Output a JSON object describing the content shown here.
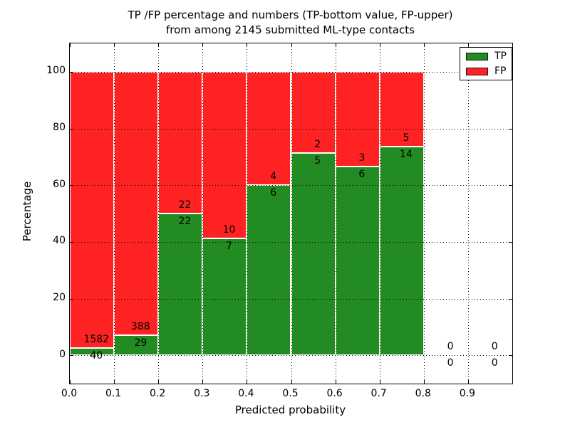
{
  "title": {
    "line1": "TP /FP percentage and numbers (TP-bottom value, FP-upper)",
    "line2": "from among 2145 submitted ML-type contacts"
  },
  "legend": {
    "items": [
      {
        "label": "TP",
        "color": "#228b22"
      },
      {
        "label": "FP",
        "color": "#fe2222"
      }
    ]
  },
  "chart_data": {
    "type": "bar",
    "subtype": "stacked-100pct",
    "title": "TP /FP percentage and numbers (TP-bottom value, FP-upper)\nfrom among 2145 submitted ML-type contacts",
    "xlabel": "Predicted probability",
    "ylabel": "Percentage",
    "xlim": [
      0.0,
      1.0
    ],
    "ylim": [
      -10,
      110
    ],
    "x_ticks": [
      "0.0",
      "0.1",
      "0.2",
      "0.3",
      "0.4",
      "0.5",
      "0.6",
      "0.7",
      "0.8",
      "0.9"
    ],
    "y_ticks": [
      "0",
      "20",
      "40",
      "60",
      "80",
      "100"
    ],
    "grid": "dotted black, drawn above bars",
    "legend_position": "upper right",
    "total_contacts": 2145,
    "series": [
      {
        "name": "TP",
        "color": "#228b22",
        "position": "bottom"
      },
      {
        "name": "FP",
        "color": "#fe2222",
        "position": "top"
      }
    ],
    "bins": [
      {
        "x_start": 0.0,
        "x_end": 0.1,
        "tp": 40,
        "fp": 1582,
        "tp_pct": 2.47
      },
      {
        "x_start": 0.1,
        "x_end": 0.2,
        "tp": 29,
        "fp": 388,
        "tp_pct": 6.95
      },
      {
        "x_start": 0.2,
        "x_end": 0.3,
        "tp": 22,
        "fp": 22,
        "tp_pct": 50.0
      },
      {
        "x_start": 0.3,
        "x_end": 0.4,
        "tp": 7,
        "fp": 10,
        "tp_pct": 41.18
      },
      {
        "x_start": 0.4,
        "x_end": 0.5,
        "tp": 6,
        "fp": 4,
        "tp_pct": 60.0
      },
      {
        "x_start": 0.5,
        "x_end": 0.6,
        "tp": 5,
        "fp": 2,
        "tp_pct": 71.43
      },
      {
        "x_start": 0.6,
        "x_end": 0.7,
        "tp": 6,
        "fp": 3,
        "tp_pct": 66.67
      },
      {
        "x_start": 0.7,
        "x_end": 0.8,
        "tp": 14,
        "fp": 5,
        "tp_pct": 73.68
      },
      {
        "x_start": 0.8,
        "x_end": 0.9,
        "tp": 0,
        "fp": 0,
        "tp_pct": null
      },
      {
        "x_start": 0.9,
        "x_end": 1.0,
        "tp": 0,
        "fp": 0,
        "tp_pct": null
      }
    ]
  }
}
